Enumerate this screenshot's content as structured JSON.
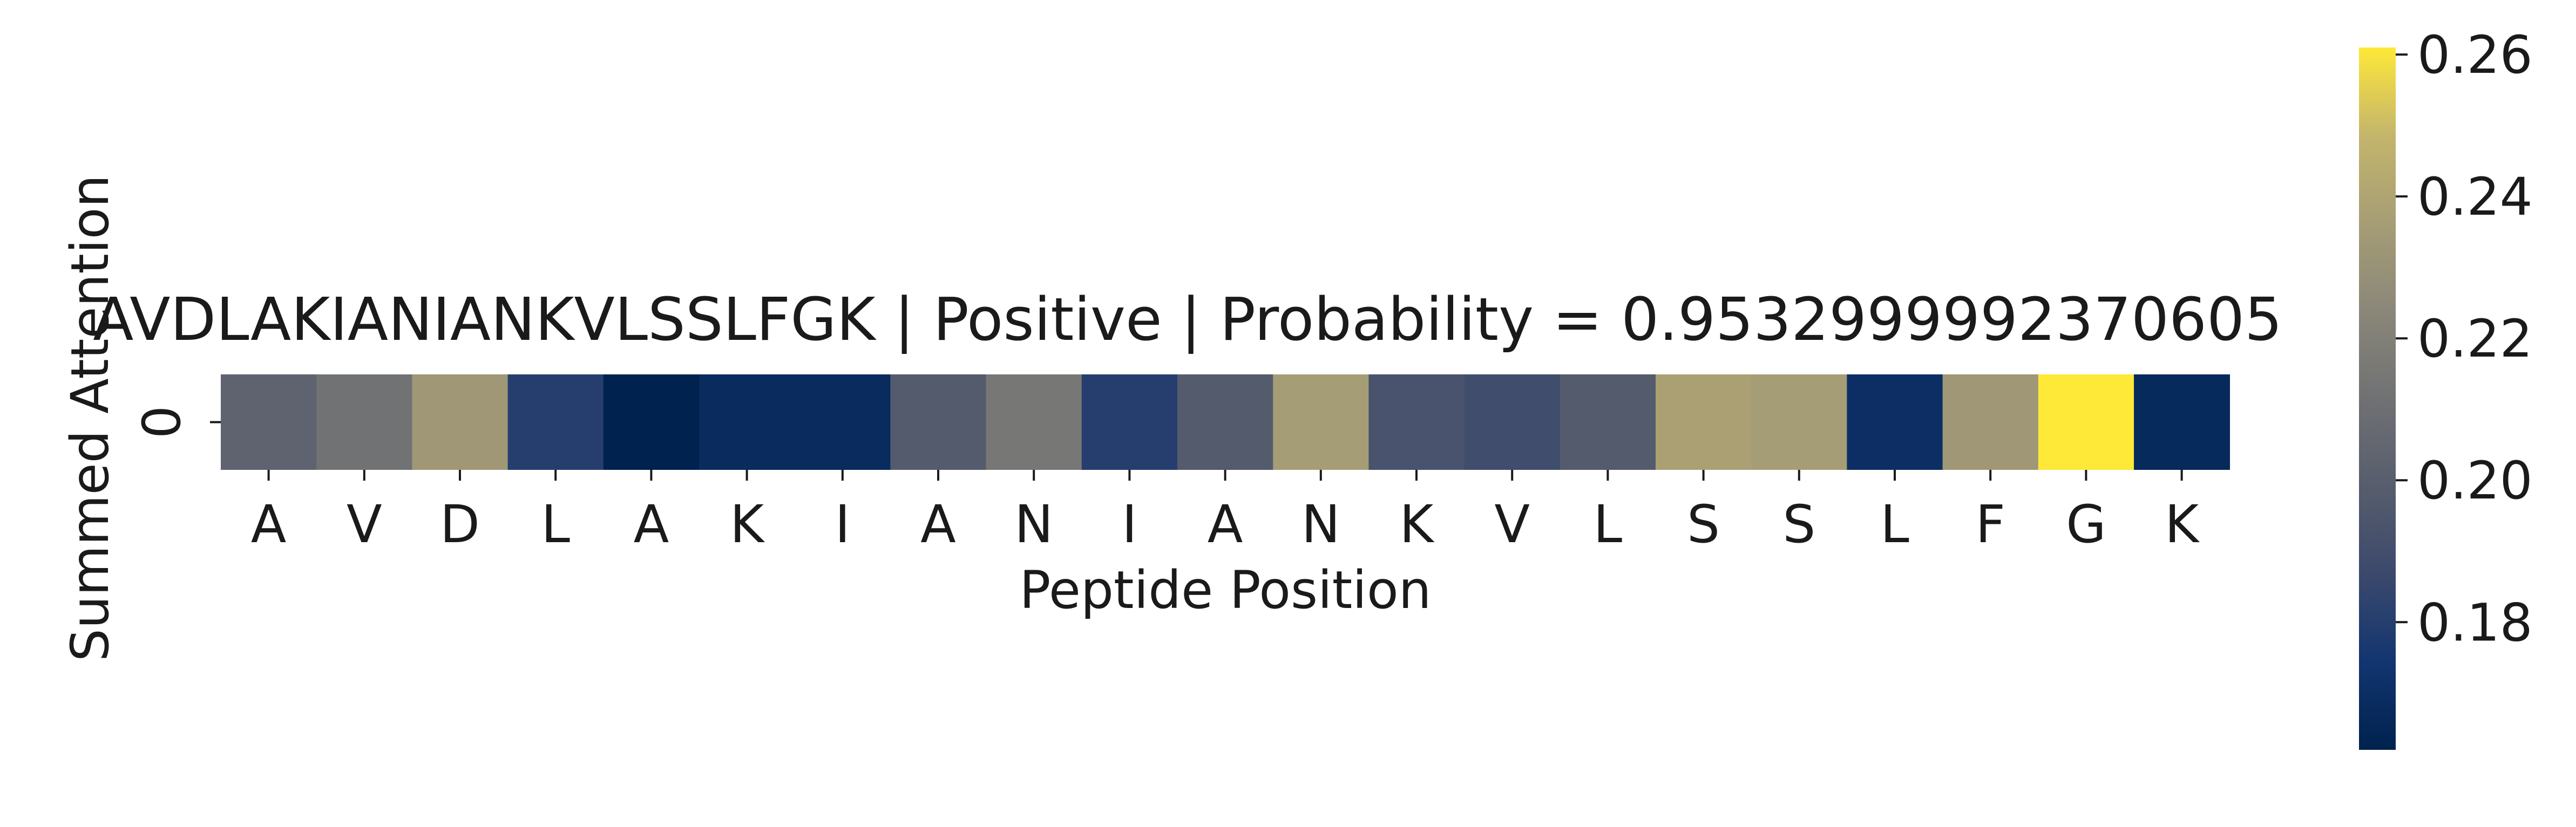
{
  "chart_data": {
    "type": "heatmap",
    "title": "AVDLAKIANIANKVLSSLFGK | Positive | Probability = 0.9532999992370605",
    "xlabel": "Peptide Position",
    "ylabel": "Summed Attention",
    "y_tick_labels": [
      "0"
    ],
    "x_tick_labels": [
      "A",
      "V",
      "D",
      "L",
      "A",
      "K",
      "I",
      "A",
      "N",
      "I",
      "A",
      "N",
      "K",
      "V",
      "L",
      "S",
      "S",
      "L",
      "F",
      "G",
      "K"
    ],
    "values": [
      [
        0.203,
        0.212,
        0.233,
        0.18,
        0.162,
        0.168,
        0.168,
        0.198,
        0.215,
        0.18,
        0.198,
        0.236,
        0.193,
        0.189,
        0.198,
        0.238,
        0.236,
        0.17,
        0.233,
        0.261,
        0.167
      ]
    ],
    "colormap": "cividis",
    "colorbar": {
      "vmin": 0.162,
      "vmax": 0.261,
      "ticks": [
        "0.18",
        "0.20",
        "0.22",
        "0.24",
        "0.26"
      ]
    }
  }
}
